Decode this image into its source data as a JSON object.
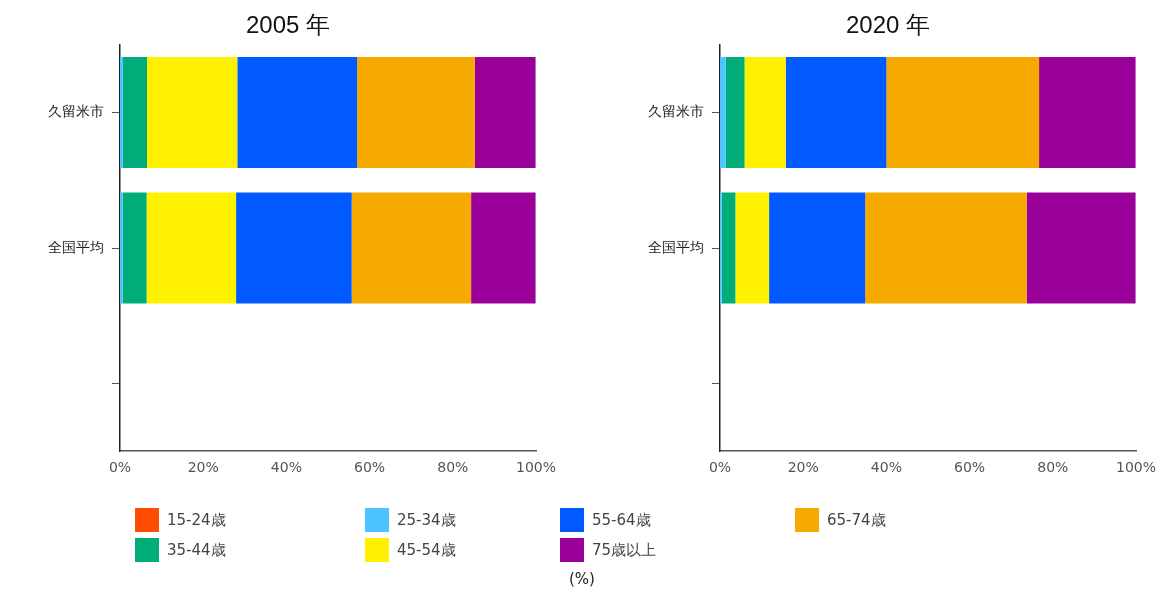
{
  "chart_data": [
    {
      "type": "bar",
      "orientation": "horizontal",
      "stacked": true,
      "title": "2005 年",
      "categories": [
        "久留米市",
        "全国平均",
        null
      ],
      "series": [
        {
          "name": "15-24歳",
          "color": "#ff4c00",
          "values": [
            null,
            null,
            null
          ]
        },
        {
          "name": "25-34歳",
          "color": "#4dc3ff",
          "values": [
            0.7,
            0.6,
            null
          ]
        },
        {
          "name": "35-44歳",
          "color": "#00ad78",
          "values": [
            5.8,
            5.8,
            null
          ]
        },
        {
          "name": "45-54歳",
          "color": "#fff000",
          "values": [
            21.7,
            21.5,
            null
          ]
        },
        {
          "name": "55-64歳",
          "color": "#005aff",
          "values": [
            28.8,
            27.8,
            null
          ]
        },
        {
          "name": "65-74歳",
          "color": "#f6aa00",
          "values": [
            28.3,
            28.7,
            null
          ]
        },
        {
          "name": "75歳以上",
          "color": "#990099",
          "values": [
            14.6,
            15.5,
            null
          ]
        }
      ],
      "xlim": [
        0,
        100
      ],
      "xticks": [
        {
          "value": 0,
          "label": "0%"
        },
        {
          "value": 20,
          "label": "20%"
        },
        {
          "value": 40,
          "label": "40%"
        },
        {
          "value": 60,
          "label": "60%"
        },
        {
          "value": 80,
          "label": "80%"
        },
        {
          "value": 100,
          "label": "100%"
        }
      ],
      "grid": false,
      "legend": "bottom",
      "annotations": [
        "(%)"
      ]
    },
    {
      "type": "bar",
      "orientation": "horizontal",
      "stacked": true,
      "title": "2020 年",
      "categories": [
        "久留米市",
        "全国平均",
        null
      ],
      "series": [
        {
          "color": "#ff4c00",
          "values": [
            null,
            null,
            null
          ]
        },
        {
          "color": "#4dc3ff",
          "values": [
            1.4,
            0.4,
            null
          ]
        },
        {
          "color": "#00ad78",
          "values": [
            4.5,
            3.3,
            null
          ]
        },
        {
          "color": "#fff000",
          "values": [
            9.9,
            8.1,
            null
          ]
        },
        {
          "color": "#005aff",
          "values": [
            24.2,
            23.1,
            null
          ]
        },
        {
          "color": "#f6aa00",
          "values": [
            36.7,
            38.8,
            null
          ]
        },
        {
          "color": "#990099",
          "values": [
            23.2,
            26.2,
            null
          ]
        }
      ],
      "xlim": [
        0,
        100
      ],
      "xticks": [
        {
          "value": 0,
          "label": "0%"
        },
        {
          "value": 20,
          "label": "20%"
        },
        {
          "value": 40,
          "label": "40%"
        },
        {
          "value": 60,
          "label": "60%"
        },
        {
          "value": 80,
          "label": "80%"
        },
        {
          "value": 100,
          "label": "100%"
        }
      ],
      "grid": false,
      "legend": false
    }
  ]
}
